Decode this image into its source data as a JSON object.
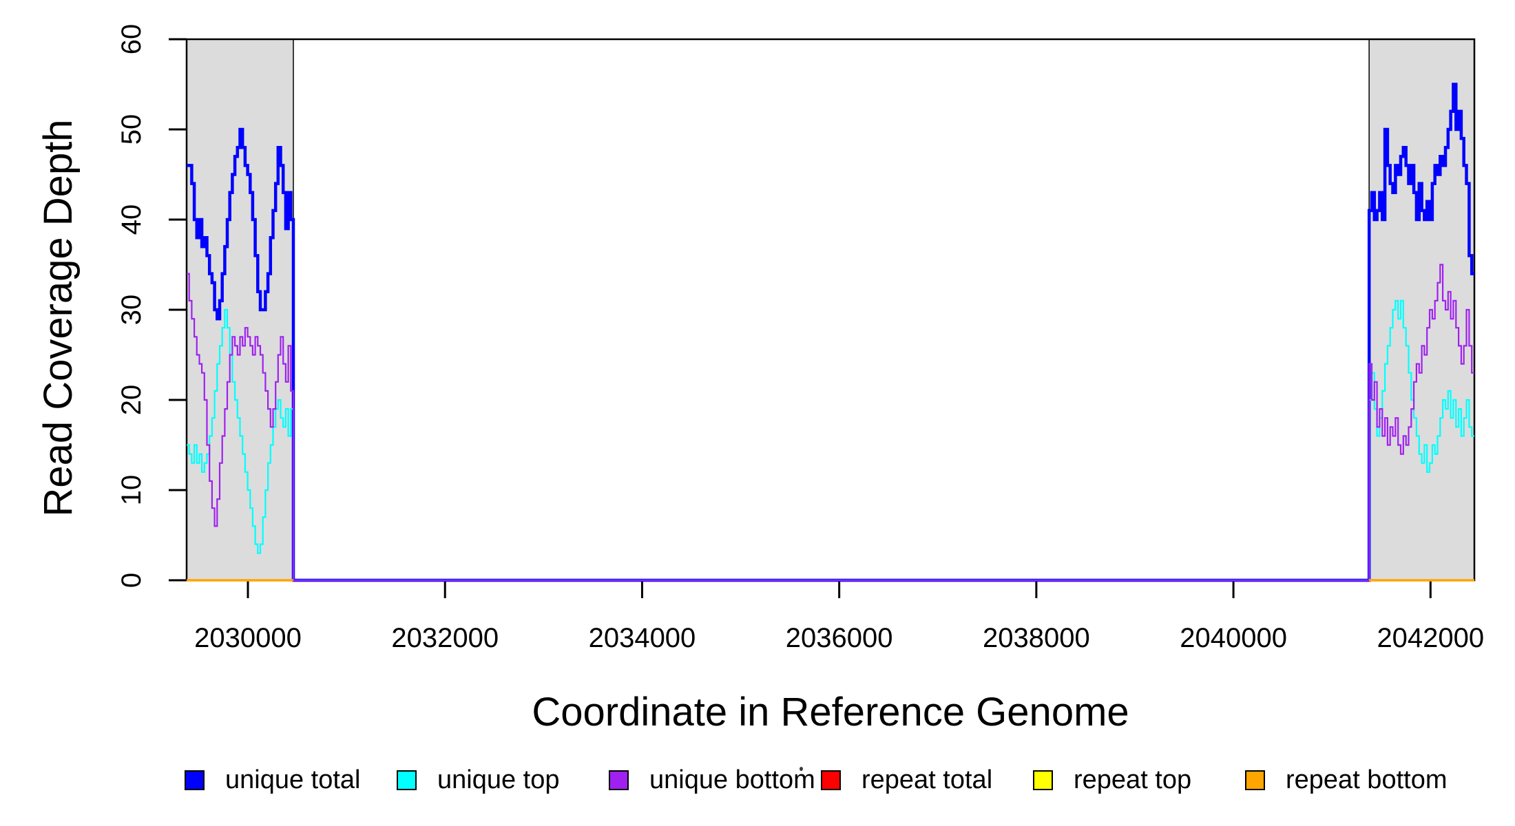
{
  "chart_data": {
    "type": "line",
    "subtype": "step-coverage",
    "title": "",
    "xlabel": "Coordinate in Reference Genome",
    "ylabel": "Read Coverage Depth",
    "xlim": [
      2029378,
      2042445
    ],
    "ylim": [
      0,
      60
    ],
    "x_ticks": [
      2030000,
      2032000,
      2034000,
      2036000,
      2038000,
      2040000,
      2042000
    ],
    "y_ticks": [
      0,
      10,
      20,
      30,
      40,
      50,
      60
    ],
    "grid": false,
    "legend_position": "bottom",
    "plot_background": "#ffffff",
    "axis_color": "#000000",
    "shaded_regions": [
      {
        "x0": 2029378,
        "x1": 2030461,
        "fill": "#dcdcdc",
        "border": "#000000"
      },
      {
        "x0": 2041377,
        "x1": 2042445,
        "fill": "#dcdcdc",
        "border": "#000000"
      }
    ],
    "series": [
      {
        "name": "unique total",
        "color": "#0000ff",
        "line_width": 4.5,
        "connect_through_zero": true,
        "values_by_region": [
          [
            46,
            46,
            44,
            40,
            38,
            40,
            37,
            38,
            36,
            34,
            33,
            30,
            29,
            31,
            34,
            37,
            40,
            43,
            45,
            47,
            48,
            50,
            48,
            46,
            45,
            43,
            40,
            36,
            32,
            30,
            30,
            32,
            34,
            38,
            41,
            44,
            48,
            46,
            43,
            39,
            43,
            40
          ],
          [
            41,
            43,
            40,
            41,
            43,
            40,
            50,
            46,
            44,
            43,
            46,
            45,
            47,
            48,
            46,
            44,
            46,
            43,
            40,
            44,
            41,
            40,
            42,
            40,
            44,
            46,
            45,
            47,
            46,
            48,
            50,
            52,
            55,
            50,
            52,
            49,
            46,
            44,
            36,
            34
          ]
        ]
      },
      {
        "name": "unique top",
        "color": "#00ffff",
        "line_width": 2.2,
        "connect_through_zero": true,
        "values_by_region": [
          [
            15,
            14,
            13,
            15,
            13,
            14,
            12,
            13,
            14,
            16,
            18,
            21,
            24,
            26,
            28,
            30,
            28,
            25,
            22,
            20,
            18,
            16,
            14,
            12,
            10,
            8,
            6,
            4,
            3,
            4,
            7,
            10,
            13,
            15,
            17,
            19,
            20,
            18,
            17,
            19,
            16,
            19
          ],
          [
            20,
            23,
            19,
            16,
            18,
            21,
            24,
            26,
            28,
            30,
            31,
            29,
            31,
            28,
            26,
            23,
            20,
            18,
            16,
            14,
            13,
            15,
            12,
            13,
            15,
            14,
            16,
            18,
            20,
            19,
            21,
            18,
            20,
            17,
            19,
            16,
            18,
            20,
            17,
            16
          ]
        ]
      },
      {
        "name": "unique bottom",
        "color": "#a020f0",
        "line_width": 2.2,
        "connect_through_zero": true,
        "values_by_region": [
          [
            34,
            31,
            29,
            27,
            25,
            24,
            23,
            20,
            15,
            11,
            8,
            6,
            9,
            13,
            16,
            19,
            22,
            25,
            27,
            26,
            25,
            27,
            26,
            28,
            27,
            26,
            25,
            27,
            26,
            25,
            23,
            21,
            19,
            17,
            19,
            22,
            25,
            27,
            24,
            22,
            26,
            21
          ],
          [
            24,
            20,
            22,
            17,
            19,
            16,
            18,
            15,
            17,
            16,
            18,
            15,
            14,
            16,
            15,
            17,
            19,
            22,
            24,
            23,
            26,
            25,
            28,
            30,
            29,
            31,
            33,
            35,
            31,
            30,
            32,
            29,
            31,
            28,
            26,
            24,
            26,
            30,
            26,
            23
          ]
        ]
      },
      {
        "name": "repeat total",
        "color": "#ff0000",
        "line_width": 2.2,
        "connect_through_zero": false,
        "values_by_region": [
          [
            0
          ],
          [
            0
          ]
        ]
      },
      {
        "name": "repeat top",
        "color": "#ffff00",
        "line_width": 2.8,
        "connect_through_zero": false,
        "values_by_region": [
          [
            0
          ],
          [
            0
          ]
        ]
      },
      {
        "name": "repeat bottom",
        "color": "#ffa500",
        "line_width": 3.5,
        "connect_through_zero": false,
        "values_by_region": [
          [
            0
          ],
          [
            0
          ]
        ]
      }
    ],
    "legend": [
      {
        "label": "unique total",
        "color": "#0000ff"
      },
      {
        "label": "unique top",
        "color": "#00ffff"
      },
      {
        "label": "unique bottom",
        "color": "#a020f0"
      },
      {
        "label": "repeat total",
        "color": "#ff0000"
      },
      {
        "label": "repeat top",
        "color": "#ffff00"
      },
      {
        "label": "repeat bottom",
        "color": "#ffa500"
      }
    ]
  }
}
